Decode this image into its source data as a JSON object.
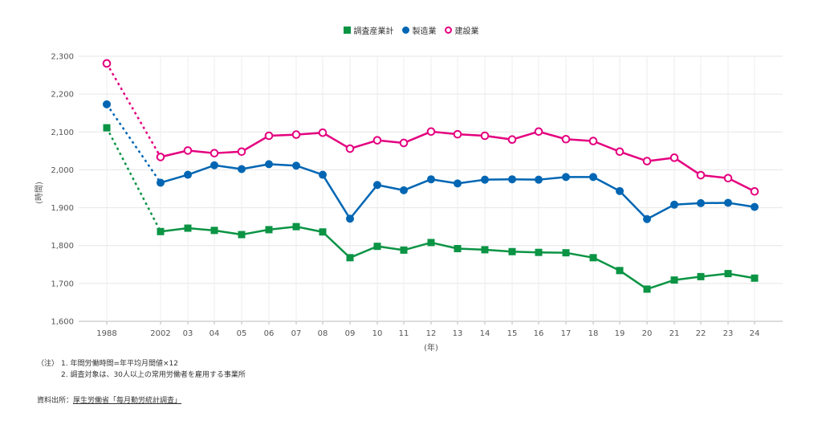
{
  "legend": [
    {
      "name": "調査産業計",
      "color": "#0a9444",
      "marker": "square"
    },
    {
      "name": "製造業",
      "color": "#0066b3",
      "marker": "circle"
    },
    {
      "name": "建設業",
      "color": "#e4007f",
      "marker": "circle-open"
    }
  ],
  "notes": {
    "prefix": "（注）",
    "line1": "1. 年間労働時間=年平均月間値×12",
    "line2": "2. 調査対象は、30人以上の常用労働者を雇用する事業所"
  },
  "source": {
    "label": "資料出所：",
    "text": "厚生労働省「毎月勤労統計調査」"
  },
  "chart_data": {
    "type": "line",
    "categories": [
      "1988",
      "2002",
      "03",
      "04",
      "05",
      "06",
      "07",
      "08",
      "09",
      "10",
      "11",
      "12",
      "13",
      "14",
      "15",
      "16",
      "17",
      "18",
      "19",
      "20",
      "21",
      "22",
      "23",
      "24"
    ],
    "xlabel": "(年)",
    "ylabel": "(時間)",
    "ylim": [
      1600,
      2300
    ],
    "yticks": [
      "1,600",
      "1,700",
      "1,800",
      "1,900",
      "2,000",
      "2,100",
      "2,200",
      "2,300"
    ],
    "grid": true,
    "legend_position": "top-center",
    "dotted_first_segment": true,
    "series": [
      {
        "name": "調査産業計",
        "color": "#0a9444",
        "marker": "square",
        "values": [
          2111,
          1837,
          1846,
          1840,
          1829,
          1842,
          1850,
          1836,
          1768,
          1798,
          1788,
          1808,
          1792,
          1789,
          1784,
          1782,
          1781,
          1768,
          1734,
          1685,
          1709,
          1718,
          1726,
          1714
        ]
      },
      {
        "name": "製造業",
        "color": "#0066b3",
        "marker": "circle",
        "values": [
          2173,
          1966,
          1987,
          2012,
          2002,
          2015,
          2011,
          1987,
          1871,
          1960,
          1946,
          1975,
          1964,
          1974,
          1975,
          1974,
          1981,
          1981,
          1944,
          1870,
          1908,
          1912,
          1913,
          1902
        ]
      },
      {
        "name": "建設業",
        "color": "#e4007f",
        "marker": "circle-open",
        "values": [
          2281,
          2034,
          2051,
          2044,
          2048,
          2090,
          2093,
          2098,
          2056,
          2078,
          2071,
          2101,
          2094,
          2090,
          2080,
          2101,
          2081,
          2076,
          2048,
          2023,
          2032,
          1986,
          1978,
          1943
        ]
      }
    ]
  }
}
